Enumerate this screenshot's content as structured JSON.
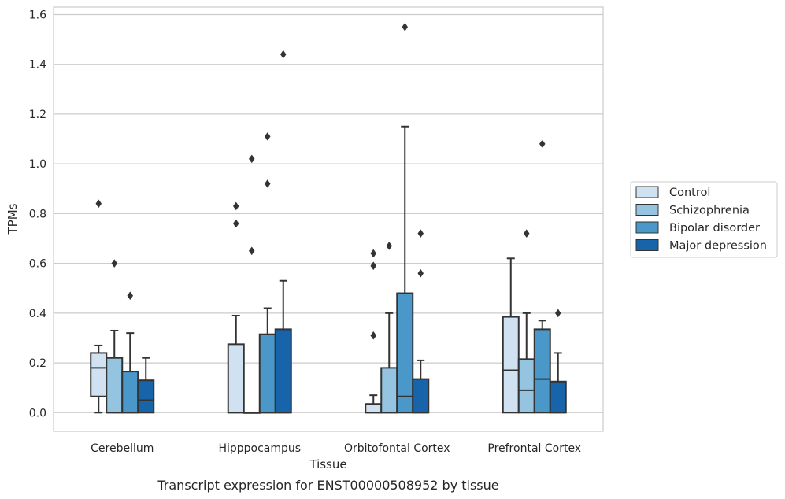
{
  "chart_data": {
    "type": "box",
    "caption": "Transcript expression for ENST00000508952 by tissue",
    "xlabel": "Tissue",
    "ylabel": "TPMs",
    "ylim": [
      -0.075,
      1.63
    ],
    "yticks": [
      "0.0",
      "0.2",
      "0.4",
      "0.6",
      "0.8",
      "1.0",
      "1.2",
      "1.4",
      "1.6"
    ],
    "ytick_values": [
      0,
      0.2,
      0.4,
      0.6,
      0.8,
      1.0,
      1.2,
      1.4,
      1.6
    ],
    "grid": true,
    "legend_placement": "right",
    "categories": [
      "Cerebellum",
      "Hipppocampus",
      "Orbitofontal Cortex",
      "Prefrontal Cortex"
    ],
    "series": [
      {
        "name": "Control",
        "color": "#d0e1f2",
        "boxes": [
          {
            "q1": 0.065,
            "median": 0.18,
            "q3": 0.24,
            "whisker_low": 0.0,
            "whisker_high": 0.27,
            "outliers": [
              0.84
            ]
          },
          {
            "q1": 0.0,
            "median": 0.0,
            "q3": 0.275,
            "whisker_low": 0.0,
            "whisker_high": 0.39,
            "outliers": [
              0.83,
              0.76
            ]
          },
          {
            "q1": 0.0,
            "median": 0.0,
            "q3": 0.035,
            "whisker_low": 0.0,
            "whisker_high": 0.07,
            "outliers": [
              0.64,
              0.59,
              0.31
            ]
          },
          {
            "q1": 0.0,
            "median": 0.17,
            "q3": 0.385,
            "whisker_low": 0.0,
            "whisker_high": 0.62,
            "outliers": []
          }
        ]
      },
      {
        "name": "Schizophrenia",
        "color": "#94c4df",
        "boxes": [
          {
            "q1": 0.0,
            "median": 0.0,
            "q3": 0.22,
            "whisker_low": 0.0,
            "whisker_high": 0.33,
            "outliers": [
              0.6
            ]
          },
          {
            "q1": 0.0,
            "median": 0.0,
            "q3": 0.0,
            "whisker_low": 0.0,
            "whisker_high": 0.0,
            "outliers": [
              1.02,
              0.65
            ]
          },
          {
            "q1": 0.0,
            "median": 0.0,
            "q3": 0.18,
            "whisker_low": 0.0,
            "whisker_high": 0.4,
            "outliers": [
              0.67
            ]
          },
          {
            "q1": 0.0,
            "median": 0.09,
            "q3": 0.215,
            "whisker_low": 0.0,
            "whisker_high": 0.4,
            "outliers": [
              0.72
            ]
          }
        ]
      },
      {
        "name": "Bipolar disorder",
        "color": "#4a98c9",
        "boxes": [
          {
            "q1": 0.0,
            "median": 0.0,
            "q3": 0.165,
            "whisker_low": 0.0,
            "whisker_high": 0.32,
            "outliers": [
              0.47
            ]
          },
          {
            "q1": 0.0,
            "median": 0.0,
            "q3": 0.315,
            "whisker_low": 0.0,
            "whisker_high": 0.42,
            "outliers": [
              1.11,
              0.92
            ]
          },
          {
            "q1": 0.0,
            "median": 0.065,
            "q3": 0.48,
            "whisker_low": 0.0,
            "whisker_high": 1.15,
            "outliers": [
              1.55
            ]
          },
          {
            "q1": 0.0,
            "median": 0.135,
            "q3": 0.335,
            "whisker_low": 0.0,
            "whisker_high": 0.37,
            "outliers": [
              1.08
            ]
          }
        ]
      },
      {
        "name": "Major depression",
        "color": "#1764ab",
        "boxes": [
          {
            "q1": 0.0,
            "median": 0.05,
            "q3": 0.13,
            "whisker_low": 0.0,
            "whisker_high": 0.22,
            "outliers": []
          },
          {
            "q1": 0.0,
            "median": 0.0,
            "q3": 0.335,
            "whisker_low": 0.0,
            "whisker_high": 0.53,
            "outliers": [
              1.44
            ]
          },
          {
            "q1": 0.0,
            "median": 0.0,
            "q3": 0.135,
            "whisker_low": 0.0,
            "whisker_high": 0.21,
            "outliers": [
              0.72,
              0.56
            ]
          },
          {
            "q1": 0.0,
            "median": 0.0,
            "q3": 0.125,
            "whisker_low": 0.0,
            "whisker_high": 0.24,
            "outliers": [
              0.4
            ]
          }
        ]
      }
    ]
  }
}
